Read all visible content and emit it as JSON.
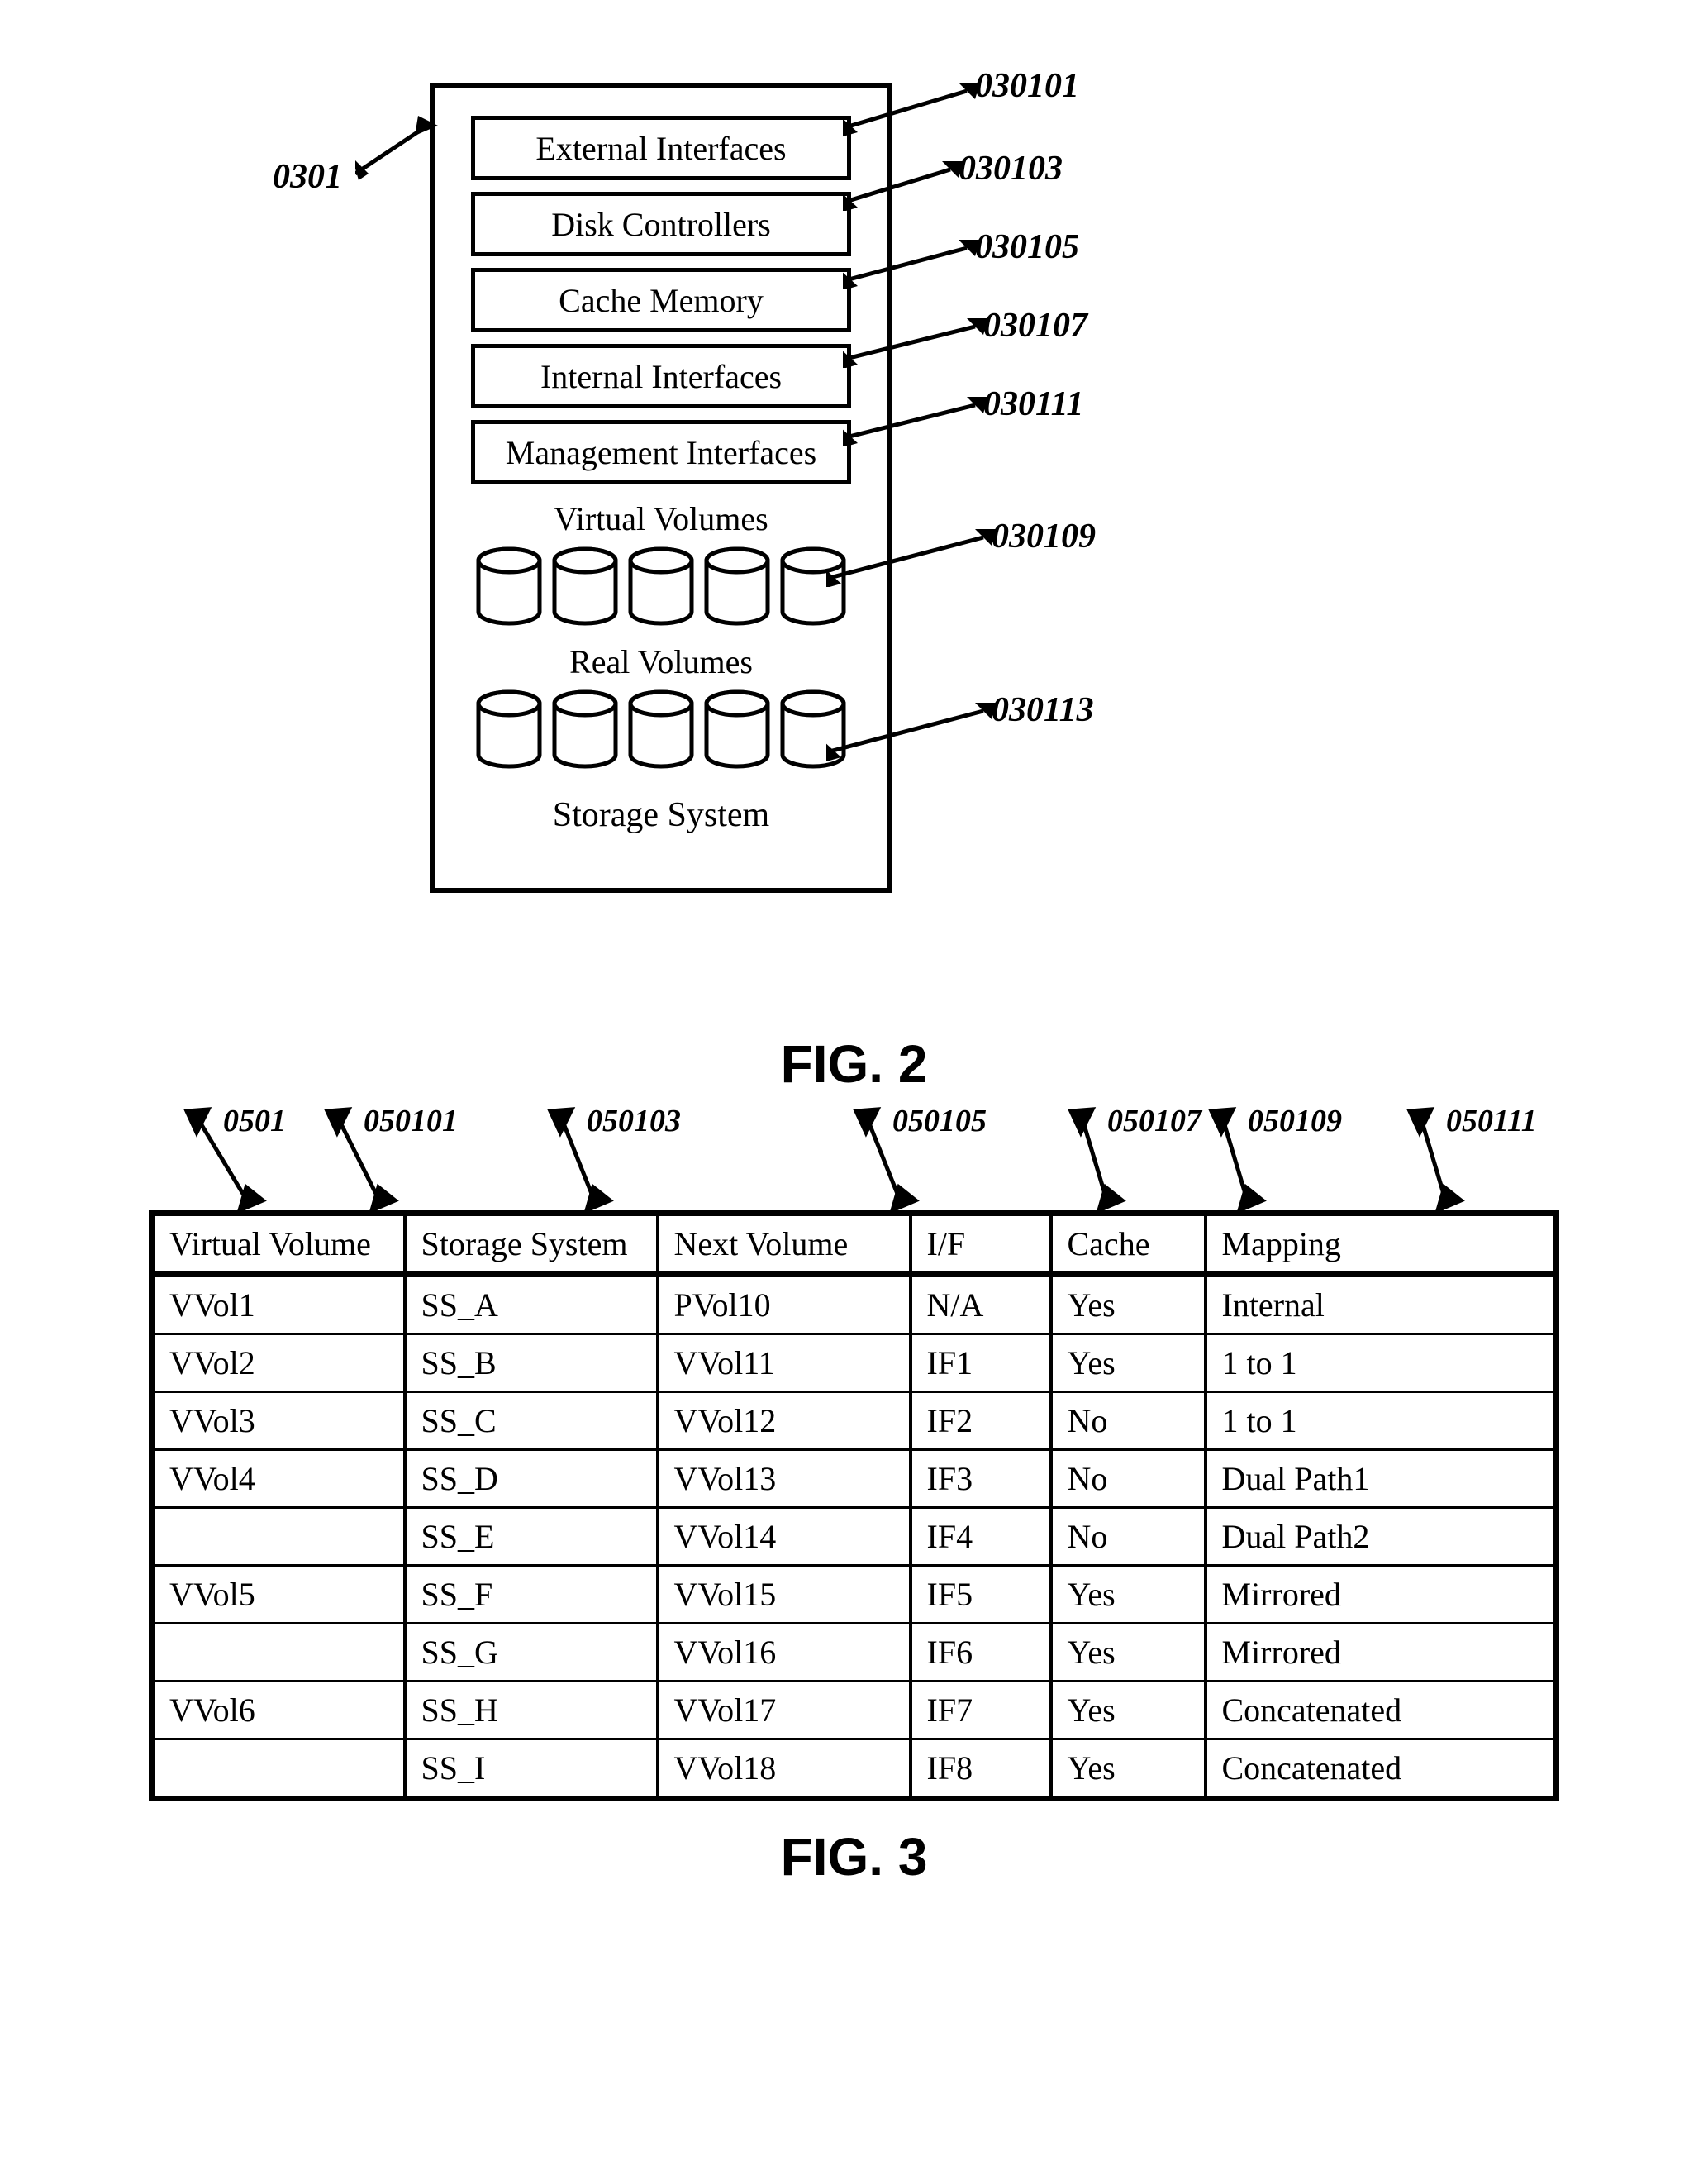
{
  "fig2": {
    "caption": "FIG. 2",
    "box_label": "0301",
    "components": [
      {
        "label": "External Interfaces",
        "ref": "030101"
      },
      {
        "label": "Disk Controllers",
        "ref": "030103"
      },
      {
        "label": "Cache Memory",
        "ref": "030105"
      },
      {
        "label": "Internal Interfaces",
        "ref": "030107"
      },
      {
        "label": "Management Interfaces",
        "ref": "030111"
      }
    ],
    "virtual_section": {
      "title": "Virtual Volumes",
      "ref": "030109",
      "count": 5
    },
    "real_section": {
      "title": "Real Volumes",
      "ref": "030113",
      "count": 5
    },
    "system_title": "Storage System",
    "cylinder": {
      "w": 84,
      "h": 100,
      "stroke": "#000000",
      "stroke_w": 5,
      "fill": "#ffffff"
    }
  },
  "fig3": {
    "caption": "FIG. 3",
    "table_ref": "0501",
    "columns": [
      {
        "header": "Virtual Volume",
        "ref": "050101",
        "width": "18%"
      },
      {
        "header": "Storage System",
        "ref": "050103",
        "width": "18%"
      },
      {
        "header": "Next Volume",
        "ref": "050105",
        "width": "18%"
      },
      {
        "header": "I/F",
        "ref": "050107",
        "width": "10%"
      },
      {
        "header": "Cache",
        "ref": "050109",
        "width": "11%"
      },
      {
        "header": "Mapping",
        "ref": "050111",
        "width": "25%"
      }
    ],
    "rows": [
      [
        "VVol1",
        "SS_A",
        "PVol10",
        "N/A",
        "Yes",
        "Internal"
      ],
      [
        "VVol2",
        "SS_B",
        "VVol11",
        "IF1",
        "Yes",
        "1 to 1"
      ],
      [
        "VVol3",
        "SS_C",
        "VVol12",
        "IF2",
        "No",
        "1 to 1"
      ],
      [
        "VVol4",
        "SS_D",
        "VVol13",
        "IF3",
        "No",
        "Dual Path1"
      ],
      [
        "",
        "SS_E",
        "VVol14",
        "IF4",
        "No",
        "Dual Path2"
      ],
      [
        "VVol5",
        "SS_F",
        "VVol15",
        "IF5",
        "Yes",
        "Mirrored"
      ],
      [
        "",
        "SS_G",
        "VVol16",
        "IF6",
        "Yes",
        "Mirrored"
      ],
      [
        "VVol6",
        "SS_H",
        "VVol17",
        "IF7",
        "Yes",
        "Concatenated"
      ],
      [
        "",
        "SS_I",
        "VVol18",
        "IF8",
        "Yes",
        "Concatenated"
      ]
    ]
  },
  "style": {
    "page_bg": "#ffffff",
    "stroke": "#000000",
    "font_family": "Times New Roman",
    "body_fontsize": 40,
    "caption_fontsize": 64,
    "ref_fontsize": 42
  }
}
